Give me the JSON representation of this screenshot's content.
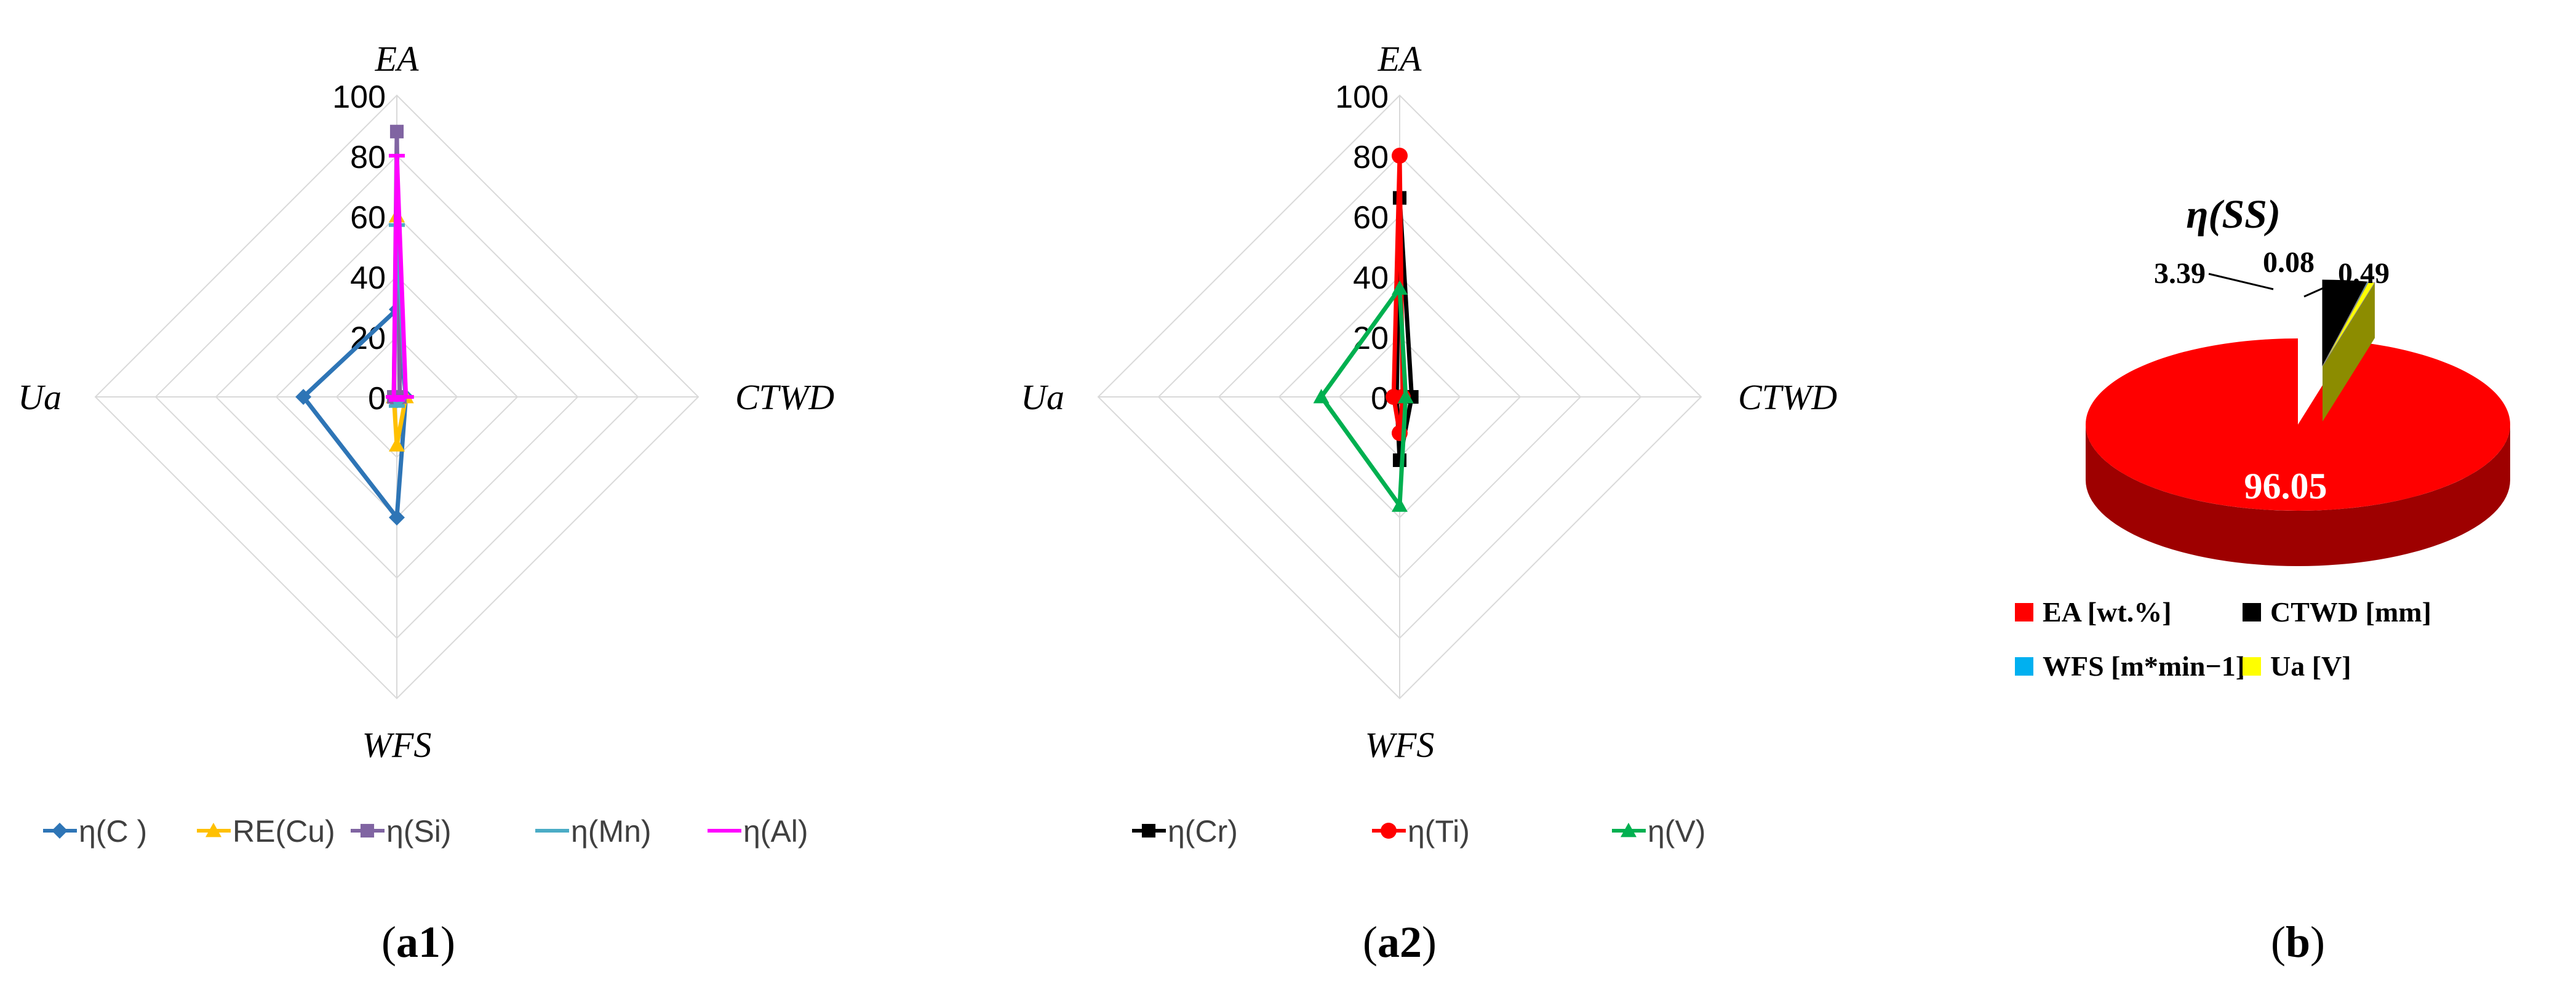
{
  "chart_data": [
    {
      "type": "radar",
      "panel_label": {
        "prefix": "(",
        "bold": "a1",
        "suffix": ")"
      },
      "axes": [
        "EA",
        "CTWD",
        "WFS",
        "Ua"
      ],
      "rlim": [
        0,
        100
      ],
      "rticks": [
        "0",
        "20",
        "40",
        "60",
        "80",
        "100"
      ],
      "grid": true,
      "legend": "bottom",
      "series": [
        {
          "name": "η(C )",
          "color": "#2e75b6",
          "marker": "diamond",
          "values": [
            29,
            3,
            40,
            31
          ]
        },
        {
          "name": "RE(Cu)",
          "color": "#ffc000",
          "marker": "triangle",
          "values": [
            60,
            3,
            16,
            1
          ]
        },
        {
          "name": "η(Si)",
          "color": "#8064a2",
          "marker": "square",
          "values": [
            88,
            1,
            1,
            1
          ]
        },
        {
          "name": "η(Mn)",
          "color": "#4bacc6",
          "marker": "dash",
          "values": [
            57,
            3,
            3,
            1
          ]
        },
        {
          "name": "η(Al)",
          "color": "#ff00ff",
          "marker": "dash",
          "values": [
            80,
            3,
            1,
            1
          ]
        }
      ]
    },
    {
      "type": "radar",
      "panel_label": {
        "prefix": "(",
        "bold": "a2",
        "suffix": ")"
      },
      "axes": [
        "EA",
        "CTWD",
        "WFS",
        "Ua"
      ],
      "rlim": [
        0,
        100
      ],
      "rticks": [
        "0",
        "20",
        "40",
        "60",
        "80",
        "100"
      ],
      "grid": true,
      "legend": "bottom",
      "series": [
        {
          "name": "η(Cr)",
          "color": "#000000",
          "marker": "square",
          "values": [
            66,
            4,
            21,
            1
          ]
        },
        {
          "name": "η(Ti)",
          "color": "#ff0000",
          "marker": "circle",
          "values": [
            80,
            1,
            12,
            2
          ]
        },
        {
          "name": "η(V)",
          "color": "#00b050",
          "marker": "triangle",
          "values": [
            36,
            2,
            36,
            26
          ]
        }
      ]
    },
    {
      "type": "pie",
      "panel_label": {
        "prefix": "(",
        "bold": "b",
        "suffix": ")"
      },
      "title": "η(SS)",
      "legend": "bottom",
      "slices": [
        {
          "name": "EA [wt.%]",
          "value": 96.05,
          "label": "96.05",
          "color": "#ff0000"
        },
        {
          "name": "CTWD [mm]",
          "value": 3.39,
          "label": "3.39",
          "color": "#000000"
        },
        {
          "name": "WFS [m*min−1]",
          "value": 0.08,
          "label": "0.08",
          "color": "#00b0f0"
        },
        {
          "name": "Ua [V]",
          "value": 0.49,
          "label": "0.49",
          "color": "#ffff00"
        }
      ]
    }
  ]
}
